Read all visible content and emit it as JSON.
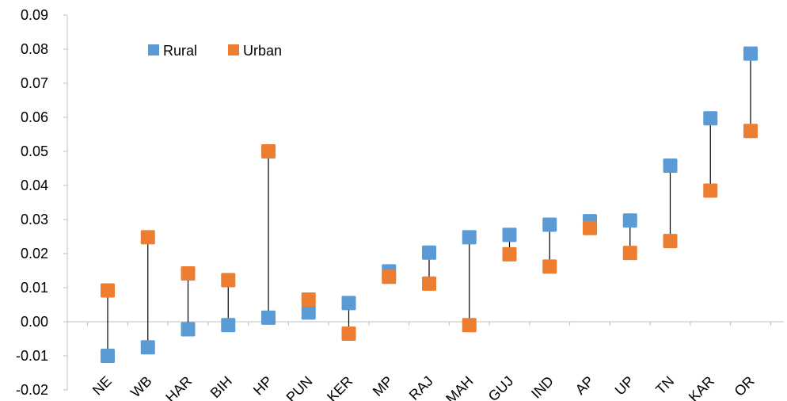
{
  "chart_data": {
    "type": "scatter",
    "categories": [
      "NE",
      "WB",
      "HAR",
      "BIH",
      "HP",
      "PUN",
      "KER",
      "MP",
      "RAJ",
      "MAH",
      "GUJ",
      "IND",
      "AP",
      "UP",
      "TN",
      "KAR",
      "OR"
    ],
    "series": [
      {
        "name": "Rural",
        "color": "#5b9bd5",
        "values": [
          -0.01,
          -0.0075,
          -0.0022,
          -0.001,
          0.0012,
          0.0027,
          0.0055,
          0.0148,
          0.0203,
          0.0248,
          0.0255,
          0.0285,
          0.0295,
          0.0297,
          0.0458,
          0.0597,
          0.0787
        ]
      },
      {
        "name": "Urban",
        "color": "#ed7d31",
        "values": [
          0.0092,
          0.0248,
          0.0142,
          0.0122,
          0.05,
          0.0065,
          -0.0035,
          0.0132,
          0.0112,
          -0.001,
          0.0198,
          0.0162,
          0.0275,
          0.0202,
          0.0237,
          0.0385,
          0.056
        ]
      }
    ],
    "ylim": [
      -0.02,
      0.09
    ],
    "yticks": [
      "-0.02",
      "-0.01",
      "0.00",
      "0.01",
      "0.02",
      "0.03",
      "0.04",
      "0.05",
      "0.06",
      "0.07",
      "0.08",
      "0.09"
    ],
    "ytick_values": [
      -0.02,
      -0.01,
      0.0,
      0.01,
      0.02,
      0.03,
      0.04,
      0.05,
      0.06,
      0.07,
      0.08,
      0.09
    ],
    "grid": false,
    "legend_position": "top-left",
    "range_lines": true,
    "title": "",
    "xlabel": "",
    "ylabel": ""
  }
}
